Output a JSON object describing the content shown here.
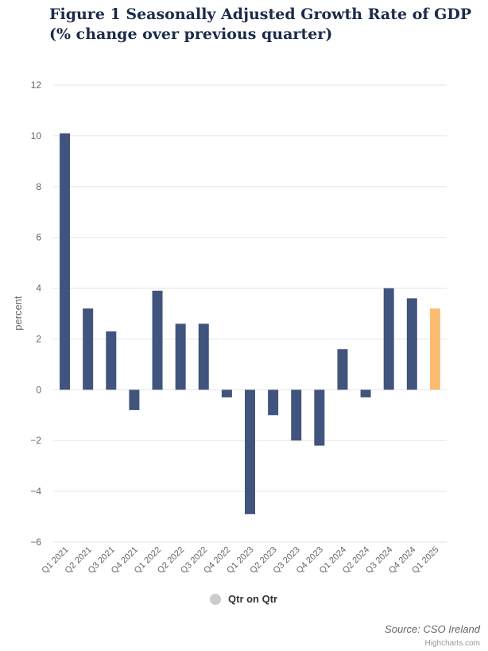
{
  "title": "Figure 1 Seasonally Adjusted Growth Rate of GDP (% change over previous quarter)",
  "chart_data": {
    "type": "bar",
    "ylabel": "percent",
    "xlabel": "",
    "ylim": [
      -6,
      12
    ],
    "yticks": [
      12,
      10,
      8,
      6,
      4,
      2,
      0,
      -2,
      -4,
      -6
    ],
    "ytick_labels": [
      "12",
      "10",
      "8",
      "6",
      "4",
      "2",
      "0",
      "−2",
      "−4",
      "−6"
    ],
    "grid": true,
    "categories": [
      "Q1 2021",
      "Q2 2021",
      "Q3 2021",
      "Q4 2021",
      "Q1 2022",
      "Q2 2022",
      "Q3 2022",
      "Q4 2022",
      "Q1 2023",
      "Q2 2023",
      "Q3 2023",
      "Q4 2023",
      "Q1 2024",
      "Q2 2024",
      "Q3 2024",
      "Q4 2024",
      "Q1 2025"
    ],
    "series": [
      {
        "name": "Qtr on Qtr",
        "values": [
          10.1,
          3.2,
          2.3,
          -0.8,
          3.9,
          2.6,
          2.6,
          -0.3,
          -4.9,
          -1.0,
          -2.0,
          -2.2,
          1.6,
          -0.3,
          4.0,
          3.6,
          3.2
        ]
      }
    ],
    "colors": {
      "bar": "#41547e",
      "highlight": "#fcbb72",
      "highlight_category": "Q1 2025",
      "grid": "#e6e6e6",
      "axis": "#ccd6eb"
    },
    "legend": {
      "label": "Qtr on Qtr",
      "position": "bottom-center",
      "color": "#cccccc"
    }
  },
  "source": "Source: CSO Ireland",
  "credits": "Highcharts.com"
}
